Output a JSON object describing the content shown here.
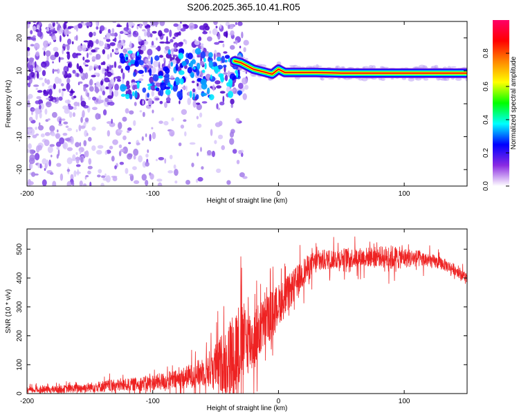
{
  "title": "S206.2025.365.10.41.R05",
  "colors": {
    "snr_line": "#ee2222",
    "ridge_core": "#ff0000",
    "scatter_main": "#6a1bdc",
    "scatter_light": "#c6a8f4",
    "axis": "#000000"
  },
  "chart_data": [
    {
      "id": "spectrogram",
      "type": "heatmap",
      "title": "",
      "xlabel": "Height of straight line (km)",
      "ylabel": "Frequency (Hz)",
      "xlim": [
        -200,
        150
      ],
      "ylim": [
        -25,
        25
      ],
      "xticks": [
        -200,
        -100,
        0,
        100
      ],
      "yticks": [
        -20,
        -10,
        0,
        10,
        20
      ],
      "grid": false,
      "dominant_frequency_ridge": {
        "x": [
          -35,
          -30,
          -25,
          -20,
          -15,
          -10,
          -5,
          0,
          5,
          10,
          20,
          30,
          50,
          70,
          90,
          110,
          130,
          150
        ],
        "y": [
          13,
          12.5,
          11.5,
          10.5,
          10,
          9.5,
          9,
          10.5,
          9.5,
          9.5,
          9.5,
          9.5,
          9.3,
          9.3,
          9.3,
          9.3,
          9.3,
          9.3
        ]
      },
      "colorbar": {
        "label": "Normalized spectral amplitude",
        "range": [
          0.0,
          1.0
        ],
        "ticks": [
          "0.0",
          "0.2",
          "0.4",
          "0.6",
          "0.8"
        ],
        "colormap": [
          "#ffffff",
          "#8a2be2",
          "#0000ff",
          "#00ffff",
          "#00ff00",
          "#ffff00",
          "#ff8800",
          "#ff0000",
          "#ff0066"
        ]
      }
    },
    {
      "id": "snr",
      "type": "line",
      "title": "",
      "xlabel": "Height of straight line (km)",
      "ylabel": "SNR (10 * v/v)",
      "xlim": [
        -200,
        150
      ],
      "ylim": [
        0,
        570
      ],
      "xticks": [
        -200,
        -100,
        0,
        100
      ],
      "yticks": [
        0,
        100,
        200,
        300,
        400,
        500
      ],
      "grid": false,
      "series": [
        {
          "name": "SNR",
          "x": [
            -200,
            -180,
            -160,
            -140,
            -120,
            -100,
            -80,
            -60,
            -50,
            -40,
            -35,
            -30,
            -25,
            -20,
            -15,
            -10,
            -5,
            0,
            5,
            10,
            15,
            20,
            25,
            30,
            40,
            50,
            60,
            70,
            80,
            90,
            100,
            110,
            120,
            130,
            140,
            150
          ],
          "y": [
            12,
            14,
            18,
            25,
            30,
            38,
            48,
            75,
            95,
            115,
            140,
            175,
            185,
            180,
            220,
            250,
            280,
            310,
            330,
            360,
            390,
            420,
            440,
            455,
            465,
            470,
            470,
            472,
            475,
            470,
            470,
            468,
            460,
            450,
            430,
            400
          ],
          "noise_amplitude": [
            10,
            12,
            15,
            20,
            22,
            28,
            35,
            50,
            80,
            130,
            170,
            150,
            120,
            110,
            100,
            90,
            80,
            70,
            70,
            60,
            55,
            50,
            45,
            40,
            35,
            35,
            35,
            35,
            35,
            45,
            35,
            30,
            25,
            22,
            20,
            18
          ]
        }
      ]
    }
  ]
}
